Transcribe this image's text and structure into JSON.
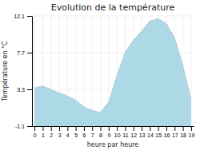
{
  "chart_data": {
    "type": "area",
    "title": "Evolution de la température",
    "xlabel": "heure par heure",
    "ylabel": "Température en °C",
    "x": [
      0,
      1,
      2,
      3,
      4,
      5,
      6,
      7,
      8,
      9,
      10,
      11,
      12,
      13,
      14,
      15,
      16,
      17,
      18,
      19
    ],
    "values": [
      3.5,
      3.7,
      3.3,
      2.9,
      2.5,
      2.0,
      1.2,
      0.8,
      0.55,
      1.8,
      5.0,
      7.8,
      9.2,
      10.3,
      11.5,
      11.8,
      11.2,
      9.5,
      6.2,
      2.1
    ],
    "xlim": [
      -0.3,
      19.3
    ],
    "ylim": [
      -1.1,
      12.1
    ],
    "xticks": [
      0,
      1,
      2,
      3,
      4,
      5,
      6,
      7,
      8,
      9,
      10,
      11,
      12,
      13,
      14,
      15,
      16,
      17,
      18,
      19
    ],
    "yticks": [
      -1.1,
      3.3,
      7.7,
      12.1
    ],
    "color": "#add8e6",
    "line_style": "dotted",
    "grid": true
  }
}
